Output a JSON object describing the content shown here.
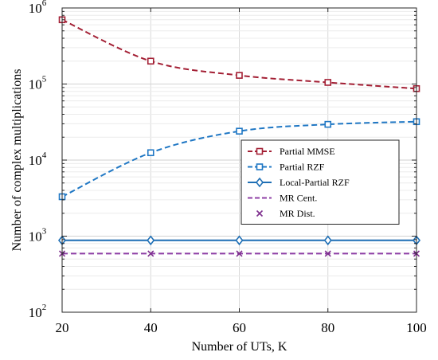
{
  "chart_data": {
    "type": "line",
    "xlabel": "Number of UTs, K",
    "ylabel": "Number of complex multiplications",
    "x": [
      20,
      40,
      60,
      80,
      100
    ],
    "xlim": [
      20,
      100
    ],
    "ylim": [
      100,
      1000000
    ],
    "yscale": "log",
    "xticks": [
      "20",
      "40",
      "60",
      "80",
      "100"
    ],
    "yticks": [
      {
        "base": "10",
        "exp": "2"
      },
      {
        "base": "10",
        "exp": "3"
      },
      {
        "base": "10",
        "exp": "4"
      },
      {
        "base": "10",
        "exp": "5"
      },
      {
        "base": "10",
        "exp": "6"
      }
    ],
    "grid": true,
    "legend_position": "center-right",
    "series": [
      {
        "name": "Partial MMSE",
        "values": [
          700000,
          200000,
          130000,
          105000,
          87000
        ],
        "color": "#a31f34",
        "dash": "dashed",
        "marker": "square"
      },
      {
        "name": "Partial RZF",
        "values": [
          3300,
          12500,
          24000,
          29500,
          32000
        ],
        "color": "#1f77c4",
        "dash": "dashed",
        "marker": "square"
      },
      {
        "name": "Local-Partial RZF",
        "values": [
          880,
          880,
          880,
          880,
          880
        ],
        "color": "#1f6fb5",
        "dash": "solid",
        "marker": "diamond"
      },
      {
        "name": "MR Cent.",
        "values": [
          590,
          590,
          590,
          590,
          590
        ],
        "color": "#8e3fa6",
        "dash": "dashed",
        "marker": "none"
      },
      {
        "name": "MR Dist.",
        "values": [
          590,
          590,
          590,
          590,
          590
        ],
        "color": "#7e2f8e",
        "dash": "none",
        "marker": "x"
      }
    ]
  }
}
